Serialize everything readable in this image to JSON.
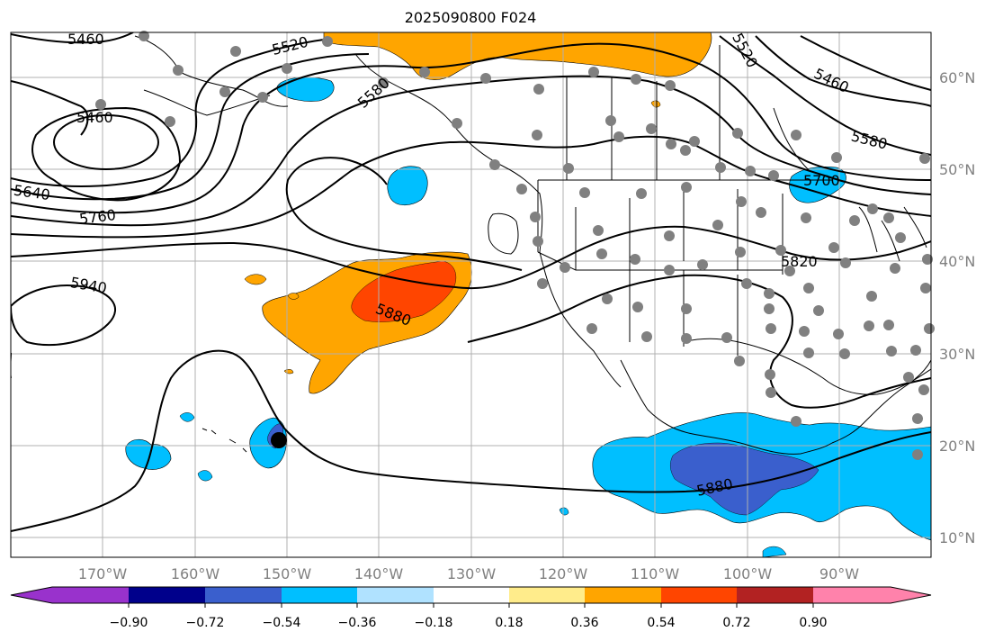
{
  "title": "2025090800 F024",
  "map": {
    "lon_labels": [
      "170°W",
      "160°W",
      "150°W",
      "140°W",
      "130°W",
      "120°W",
      "110°W",
      "100°W",
      "90°W"
    ],
    "lat_labels": [
      "60°N",
      "50°N",
      "40°N",
      "30°N",
      "20°N",
      "10°N"
    ],
    "contour_labels": [
      "5460",
      "5520",
      "5580",
      "5460",
      "5640",
      "5760",
      "5940",
      "5880",
      "5700",
      "5580",
      "5820",
      "5460",
      "5880",
      "5520"
    ]
  },
  "colorbar": {
    "ticks": [
      "−0.90",
      "−0.72",
      "−0.54",
      "−0.36",
      "−0.18",
      "0.18",
      "0.36",
      "0.54",
      "0.72",
      "0.90"
    ],
    "colors": [
      "#9932cc",
      "#00008b",
      "#3a5fcd",
      "#00bfff",
      "#b0e2ff",
      "#ffffff",
      "#ffec8b",
      "#ffa500",
      "#ff4500",
      "#b22222",
      "#ff82ab"
    ]
  },
  "colors": {
    "frame": "#000000",
    "grid": "#b0b0b0",
    "contour": "#000000",
    "station": "#808080",
    "positive_mid": "#ffa500",
    "positive_high": "#ff4500",
    "negative_mid": "#00bfff",
    "negative_high": "#3a5fcd"
  }
}
